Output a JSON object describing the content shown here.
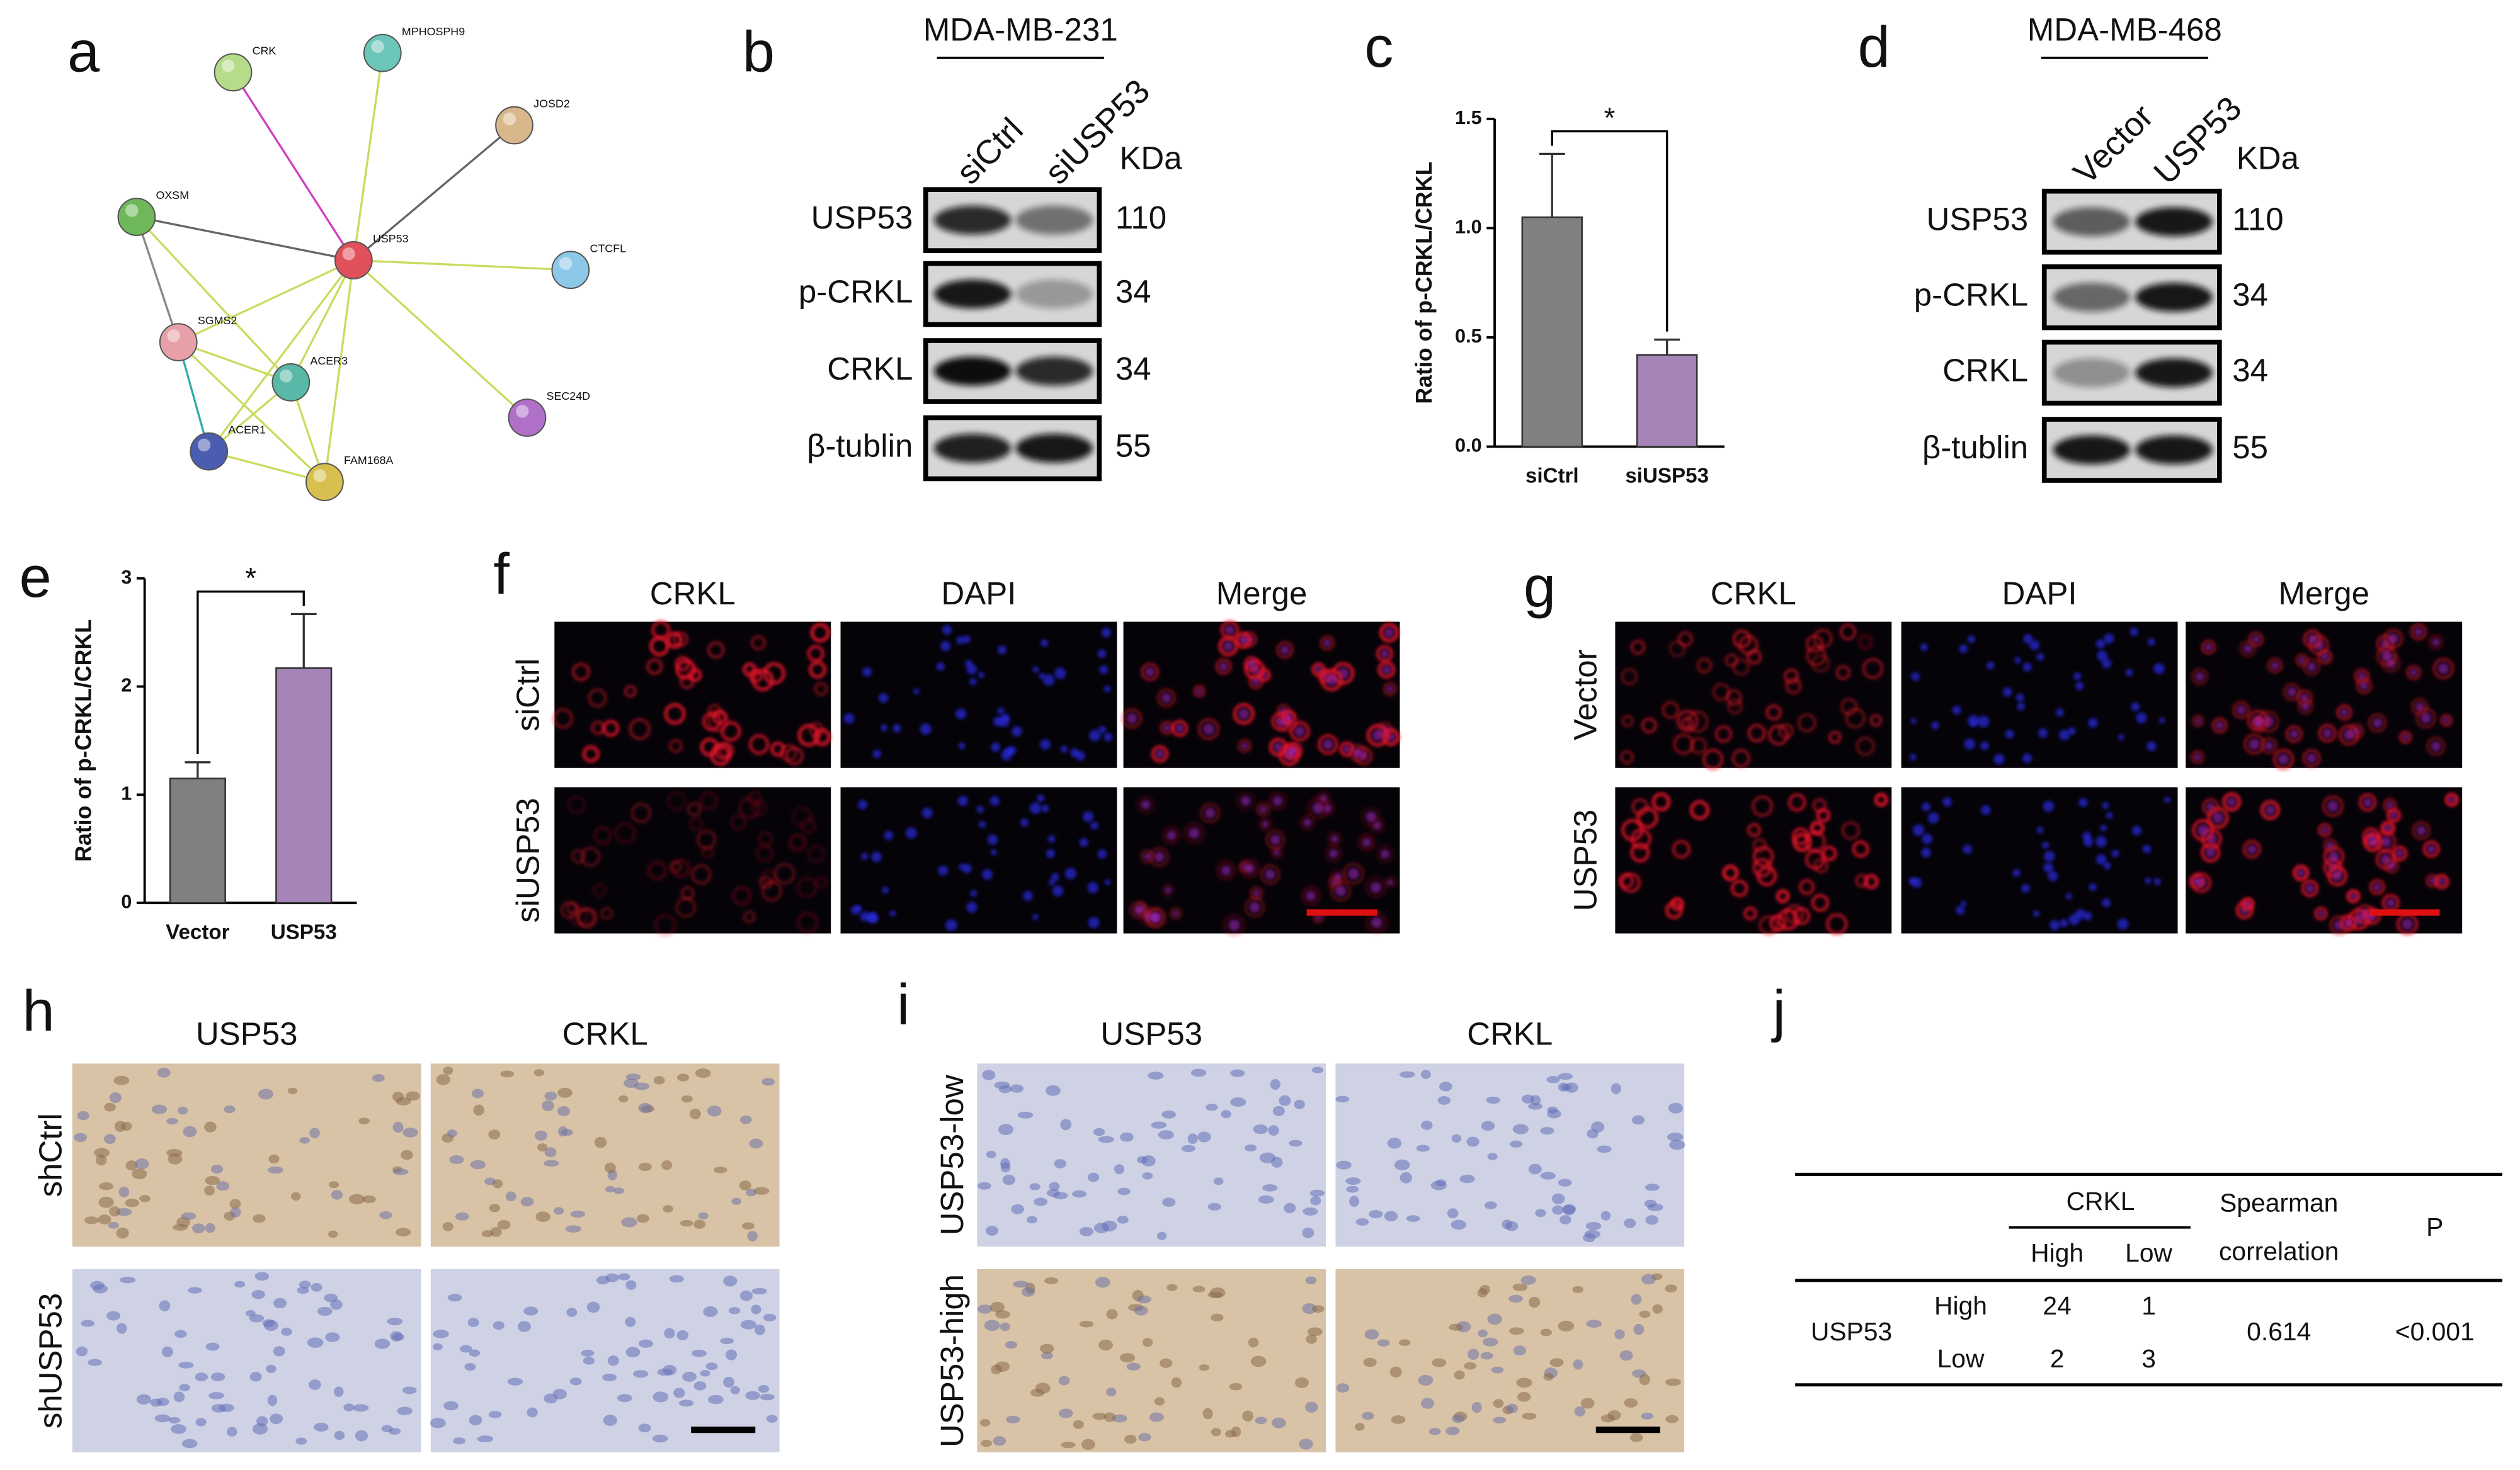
{
  "panel_labels": [
    "a",
    "b",
    "c",
    "d",
    "e",
    "f",
    "g",
    "h",
    "i",
    "j"
  ],
  "network": {
    "nodes": [
      "CRK",
      "MPHOSPH9",
      "JOSD2",
      "OXSM",
      "USP53",
      "CTCFL",
      "SGMS2",
      "ACER3",
      "ACER1",
      "SEC24D",
      "FAM168A"
    ]
  },
  "blot_b": {
    "cell_line": "MDA-MB-231",
    "lanes": [
      "siCtrl",
      "siUSP53"
    ],
    "unit": "KDa",
    "rows": [
      {
        "protein": "USP53",
        "kda": 110
      },
      {
        "protein": "p-CRKL",
        "kda": 34
      },
      {
        "protein": "CRKL",
        "kda": 34
      },
      {
        "protein": "β-tublin",
        "kda": 55
      }
    ]
  },
  "blot_d": {
    "cell_line": "MDA-MB-468",
    "lanes": [
      "Vector",
      "USP53"
    ],
    "unit": "KDa",
    "rows": [
      {
        "protein": "USP53",
        "kda": 110
      },
      {
        "protein": "p-CRKL",
        "kda": 34
      },
      {
        "protein": "CRKL",
        "kda": 34
      },
      {
        "protein": "β-tublin",
        "kda": 55
      }
    ]
  },
  "chart_data": [
    {
      "type": "bar",
      "ylabel": "Ratio of p-CRKL/CRKL",
      "categories": [
        "siCtrl",
        "siUSP53"
      ],
      "values": [
        1.05,
        0.42
      ],
      "errors": [
        0.29,
        0.07
      ],
      "colors": [
        "#808080",
        "#a584b8"
      ],
      "ylim": [
        0,
        1.5
      ],
      "yticks": [
        {
          "value": 0,
          "label": "0.0"
        },
        {
          "value": 0.5,
          "label": "0.5"
        },
        {
          "value": 1,
          "label": "1.0"
        },
        {
          "value": 1.5,
          "label": "1.5"
        }
      ],
      "significance": "*"
    },
    {
      "type": "bar",
      "ylabel": "Ratio of p-CRKL/CRKL",
      "categories": [
        "Vector",
        "USP53"
      ],
      "values": [
        1.15,
        2.17
      ],
      "errors": [
        0.15,
        0.5
      ],
      "colors": [
        "#808080",
        "#a584b8"
      ],
      "ylim": [
        0,
        3
      ],
      "yticks": [
        0,
        1,
        2,
        3
      ],
      "significance": "*"
    }
  ],
  "if_f": {
    "columns": [
      "CRKL",
      "DAPI",
      "Merge"
    ],
    "rows": [
      "siCtrl",
      "siUSP53"
    ]
  },
  "if_g": {
    "columns": [
      "CRKL",
      "DAPI",
      "Merge"
    ],
    "rows": [
      "Vector",
      "USP53"
    ]
  },
  "ihc_h": {
    "columns": [
      "USP53",
      "CRKL"
    ],
    "rows": [
      "shCtrl",
      "shUSP53"
    ]
  },
  "ihc_i": {
    "columns": [
      "USP53",
      "CRKL"
    ],
    "rows": [
      "USP53-low",
      "USP53-high"
    ]
  },
  "table_j": {
    "row_header": "USP53",
    "col_group": "CRKL",
    "col_levels": [
      "High",
      "Low"
    ],
    "stat_header": [
      "Spearman",
      "correlation"
    ],
    "p_header": "P",
    "rows": [
      {
        "level": "High",
        "counts": [
          24,
          1
        ]
      },
      {
        "level": "Low",
        "counts": [
          2,
          3
        ]
      }
    ],
    "correlation": "0.614",
    "p": "<0.001"
  }
}
